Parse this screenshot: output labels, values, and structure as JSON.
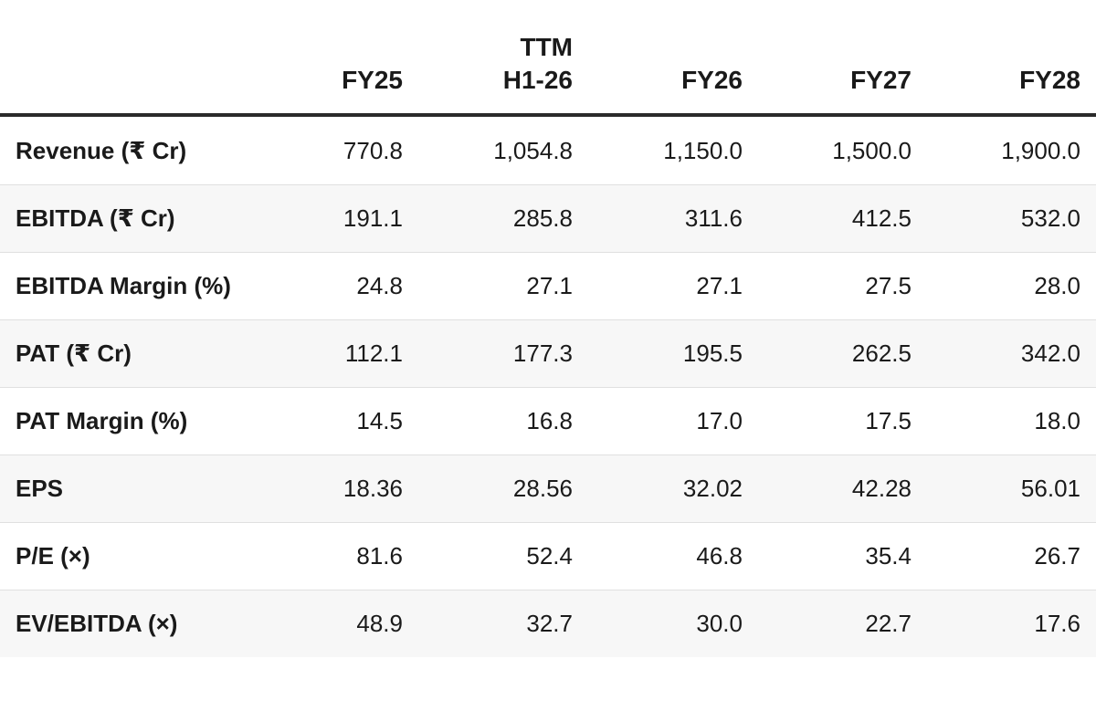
{
  "columns": [
    "FY25",
    "TTM\nH1-26",
    "FY26",
    "FY27",
    "FY28"
  ],
  "rows": [
    {
      "label": "Revenue (₹ Cr)",
      "values": [
        "770.8",
        "1,054.8",
        "1,150.0",
        "1,500.0",
        "1,900.0"
      ]
    },
    {
      "label": "EBITDA (₹ Cr)",
      "values": [
        "191.1",
        "285.8",
        "311.6",
        "412.5",
        "532.0"
      ]
    },
    {
      "label": "EBITDA Margin (%)",
      "values": [
        "24.8",
        "27.1",
        "27.1",
        "27.5",
        "28.0"
      ]
    },
    {
      "label": "PAT (₹ Cr)",
      "values": [
        "112.1",
        "177.3",
        "195.5",
        "262.5",
        "342.0"
      ]
    },
    {
      "label": "PAT Margin (%)",
      "values": [
        "14.5",
        "16.8",
        "17.0",
        "17.5",
        "18.0"
      ]
    },
    {
      "label": "EPS",
      "values": [
        "18.36",
        "28.56",
        "32.02",
        "42.28",
        "56.01"
      ]
    },
    {
      "label": "P/E (×)",
      "values": [
        "81.6",
        "52.4",
        "46.8",
        "35.4",
        "26.7"
      ]
    },
    {
      "label": "EV/EBITDA (×)",
      "values": [
        "48.9",
        "32.7",
        "30.0",
        "22.7",
        "17.6"
      ]
    }
  ]
}
